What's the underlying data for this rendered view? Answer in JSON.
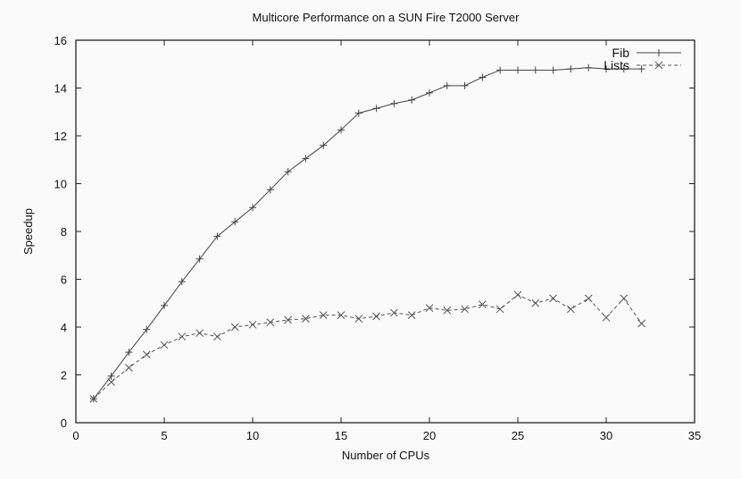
{
  "chart_data": {
    "type": "line",
    "title": "Multicore Performance on a SUN Fire T2000 Server",
    "xlabel": "Number of CPUs",
    "ylabel": "Speedup",
    "xlim": [
      0,
      35
    ],
    "ylim": [
      0,
      16
    ],
    "xticks": [
      0,
      5,
      10,
      15,
      20,
      25,
      30,
      35
    ],
    "yticks": [
      0,
      2,
      4,
      6,
      8,
      10,
      12,
      14,
      16
    ],
    "grid": false,
    "legend_position": "top-right",
    "x": [
      1,
      2,
      3,
      4,
      5,
      6,
      7,
      8,
      9,
      10,
      11,
      12,
      13,
      14,
      15,
      16,
      17,
      18,
      19,
      20,
      21,
      22,
      23,
      24,
      25,
      26,
      27,
      28,
      29,
      30,
      31,
      32
    ],
    "series": [
      {
        "name": "Fib",
        "style": "solid",
        "marker": "plus",
        "color": "#444444",
        "values": [
          1.0,
          1.95,
          2.95,
          3.9,
          4.9,
          5.9,
          6.85,
          7.8,
          8.4,
          9.0,
          9.75,
          10.5,
          11.05,
          11.6,
          12.25,
          12.95,
          13.15,
          13.35,
          13.5,
          13.8,
          14.1,
          14.1,
          14.45,
          14.75,
          14.75,
          14.75,
          14.75,
          14.8,
          14.85,
          14.8,
          14.8,
          14.8
        ]
      },
      {
        "name": "Lists",
        "style": "dashed",
        "marker": "x",
        "color": "#555555",
        "values": [
          1.0,
          1.7,
          2.3,
          2.85,
          3.25,
          3.6,
          3.75,
          3.6,
          4.0,
          4.1,
          4.2,
          4.3,
          4.35,
          4.5,
          4.5,
          4.35,
          4.45,
          4.6,
          4.5,
          4.8,
          4.7,
          4.75,
          4.95,
          4.75,
          5.35,
          5.0,
          5.2,
          4.75,
          5.2,
          4.4,
          5.2,
          4.15
        ]
      }
    ]
  }
}
